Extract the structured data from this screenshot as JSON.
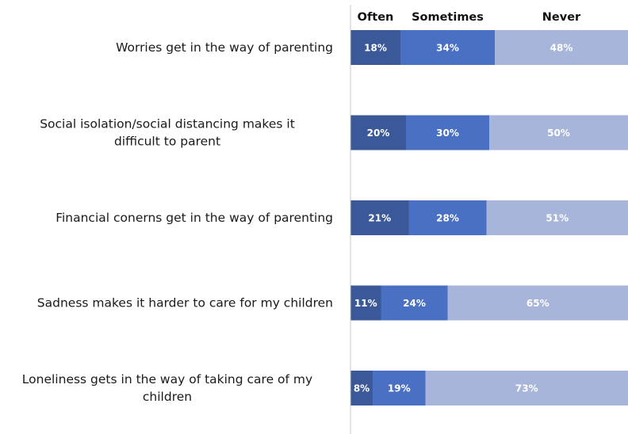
{
  "chart_data": {
    "type": "bar",
    "orientation": "horizontal",
    "stacked": true,
    "legend_position": "top",
    "grid": false,
    "xlim": [
      0,
      100
    ],
    "categories": [
      [
        "Worries get in the way of parenting"
      ],
      [
        "Social isolation/social distancing makes it",
        "difficult to parent"
      ],
      [
        "Financial conerns get in the way of parenting"
      ],
      [
        "Sadness makes it harder to care for my children"
      ],
      [
        "Loneliness gets in the way of taking care of my",
        "children"
      ]
    ],
    "series": [
      {
        "name": "Often",
        "color": "#3b5998",
        "label_color": "#ffffff",
        "values": [
          18,
          20,
          21,
          11,
          8
        ],
        "labels": [
          "18%",
          "20%",
          "21%",
          "11%",
          "8%"
        ]
      },
      {
        "name": "Sometimes",
        "color": "#4a70c4",
        "label_color": "#ffffff",
        "values": [
          34,
          30,
          28,
          24,
          19
        ],
        "labels": [
          "34%",
          "30%",
          "28%",
          "24%",
          "19%"
        ]
      },
      {
        "name": "Never",
        "color": "#a8b5da",
        "label_color": "#ffffff",
        "values": [
          48,
          50,
          51,
          65,
          73
        ],
        "labels": [
          "48%",
          "50%",
          "51%",
          "65%",
          "73%"
        ]
      }
    ],
    "axis_color": "#c8c8c8"
  }
}
